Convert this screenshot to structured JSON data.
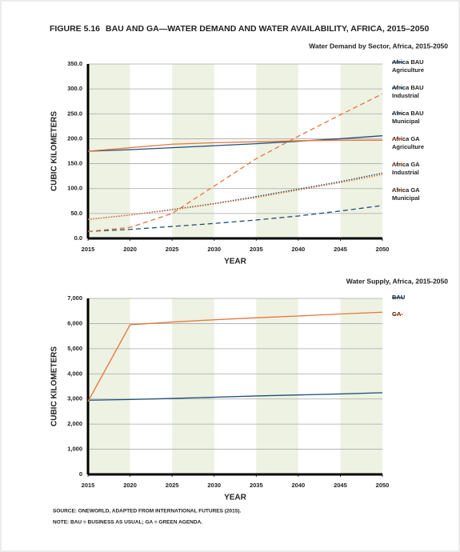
{
  "figure_label": "FIGURE 5.16",
  "figure_title": "BAU AND GA—WATER DEMAND AND WATER AVAILABILITY, AFRICA, 2015–2050",
  "source": "SOURCE: ONEWORLD, ADAPTED FROM INTERNATIONAL FUTURES (2015).",
  "note": "NOTE: BAU = BUSINESS AS USUAL; GA = GREEN AGENDA.",
  "chart_data": [
    {
      "type": "line",
      "title": "Water Demand by Sector, Africa, 2015-2050",
      "xlabel": "YEAR",
      "ylabel": "CUBIC KILOMETERS",
      "x": [
        2015,
        2020,
        2025,
        2030,
        2035,
        2040,
        2045,
        2050
      ],
      "xlim": [
        2015,
        2050
      ],
      "xticks": [
        2015,
        2020,
        2025,
        2030,
        2035,
        2040,
        2045,
        2050
      ],
      "ylim": [
        0,
        350
      ],
      "yticks": [
        {
          "value": 0,
          "label": "0.0"
        },
        {
          "value": 50,
          "label": "50.0"
        },
        {
          "value": 100,
          "label": "100.0"
        },
        {
          "value": 150,
          "label": "150.0"
        },
        {
          "value": 200,
          "label": "200.0"
        },
        {
          "value": 250,
          "label": "250.0"
        },
        {
          "value": 300,
          "label": "300.0"
        },
        {
          "value": 350,
          "label": "350.0"
        }
      ],
      "grid": true,
      "series": [
        {
          "name": "Africa BAU Agriculture",
          "color": "#1f4e79",
          "dash": "solid",
          "values": [
            175,
            178,
            182,
            186,
            190,
            195,
            200,
            206
          ]
        },
        {
          "name": "Africa BAU Industrial",
          "color": "#1f4e79",
          "dash": "dashed",
          "values": [
            14,
            18,
            24,
            30,
            37,
            45,
            55,
            66
          ]
        },
        {
          "name": "Africa BAU Municipal",
          "color": "#1f4e79",
          "dash": "dotted",
          "values": [
            38,
            47,
            58,
            70,
            84,
            99,
            114,
            131
          ]
        },
        {
          "name": "Africa GA Agriculture",
          "color": "#e8743b",
          "dash": "solid",
          "values": [
            175,
            182,
            189,
            192,
            194,
            196,
            197,
            197
          ]
        },
        {
          "name": "Africa GA Industrial",
          "color": "#e8743b",
          "dash": "dashed",
          "values": [
            14,
            22,
            50,
            105,
            160,
            205,
            248,
            290
          ]
        },
        {
          "name": "Africa GA Municipal",
          "color": "#e8743b",
          "dash": "dotted",
          "values": [
            38,
            47,
            57,
            69,
            82,
            97,
            112,
            128
          ]
        }
      ]
    },
    {
      "type": "line",
      "title": "Water Supply, Africa, 2015-2050",
      "xlabel": "YEAR",
      "ylabel": "CUBIC KILOMETERS",
      "x": [
        2015,
        2020,
        2025,
        2030,
        2035,
        2040,
        2045,
        2050
      ],
      "xlim": [
        2015,
        2050
      ],
      "xticks": [
        2015,
        2020,
        2025,
        2030,
        2035,
        2040,
        2045,
        2050
      ],
      "ylim": [
        0,
        7000
      ],
      "yticks": [
        0,
        {
          "value": 1000,
          "label": "1,000"
        },
        {
          "value": 2000,
          "label": "2,000"
        },
        {
          "value": 3000,
          "label": "3,000"
        },
        {
          "value": 4000,
          "label": "4,000"
        },
        {
          "value": 5000,
          "label": "5,000"
        },
        {
          "value": 6000,
          "label": "6,000"
        },
        {
          "value": 7000,
          "label": "7,000"
        }
      ],
      "grid": true,
      "series": [
        {
          "name": "BAU",
          "color": "#1f4e79",
          "dash": "solid",
          "values": [
            2950,
            2980,
            3020,
            3070,
            3120,
            3160,
            3200,
            3250
          ]
        },
        {
          "name": "GA",
          "color": "#e8743b",
          "dash": "solid",
          "values": [
            2900,
            5950,
            6060,
            6150,
            6230,
            6300,
            6380,
            6450
          ]
        }
      ]
    }
  ]
}
